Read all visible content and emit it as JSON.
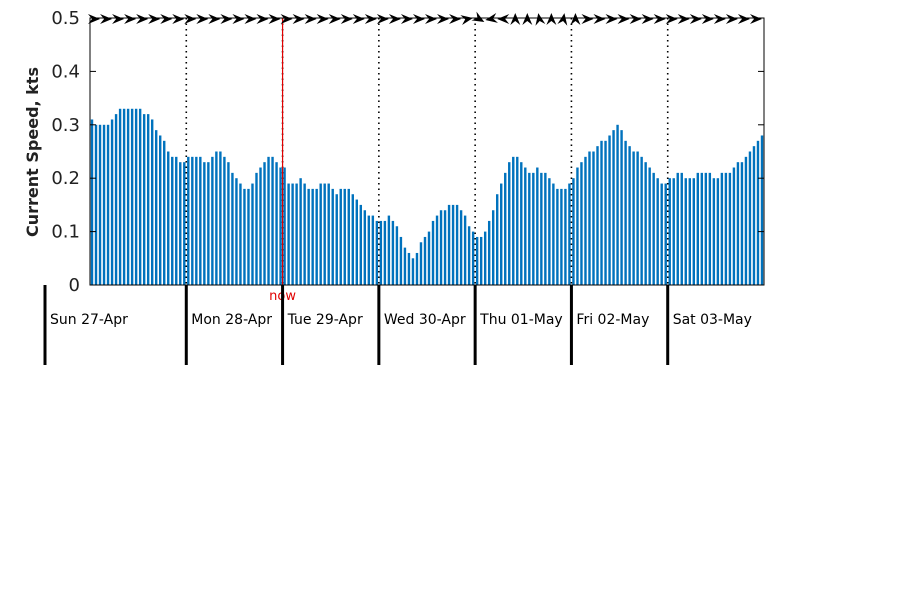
{
  "chart_data": {
    "type": "bar",
    "ylabel": "Current Speed, kts",
    "ylim": [
      0,
      0.5
    ],
    "yticks": [
      0,
      0.1,
      0.2,
      0.3,
      0.4,
      0.5
    ],
    "ytick_labels": [
      "0",
      "0.1",
      "0.2",
      "0.3",
      "0.4",
      "0.5"
    ],
    "x_start": "2025-04-27 00:00",
    "x_end": "2025-05-03 23:00",
    "x_step_hours": 1,
    "now": {
      "label": "now",
      "time": "2025-04-29 00:00"
    },
    "day_labels": [
      "Sun 27-Apr",
      "Mon 28-Apr",
      "Tue 29-Apr",
      "Wed 30-Apr",
      "Thu 01-May",
      "Fri 02-May",
      "Sat 03-May"
    ],
    "values": [
      0.31,
      0.3,
      0.3,
      0.3,
      0.3,
      0.31,
      0.32,
      0.33,
      0.33,
      0.33,
      0.33,
      0.33,
      0.33,
      0.32,
      0.32,
      0.31,
      0.29,
      0.28,
      0.27,
      0.25,
      0.24,
      0.24,
      0.23,
      0.23,
      0.24,
      0.24,
      0.24,
      0.24,
      0.23,
      0.23,
      0.24,
      0.25,
      0.25,
      0.24,
      0.23,
      0.21,
      0.2,
      0.19,
      0.18,
      0.18,
      0.19,
      0.21,
      0.22,
      0.23,
      0.24,
      0.24,
      0.23,
      0.22,
      0.22,
      0.19,
      0.19,
      0.19,
      0.2,
      0.19,
      0.18,
      0.18,
      0.18,
      0.19,
      0.19,
      0.19,
      0.18,
      0.17,
      0.18,
      0.18,
      0.18,
      0.17,
      0.16,
      0.15,
      0.14,
      0.13,
      0.13,
      0.12,
      0.12,
      0.12,
      0.13,
      0.12,
      0.11,
      0.09,
      0.07,
      0.06,
      0.05,
      0.06,
      0.08,
      0.09,
      0.1,
      0.12,
      0.13,
      0.14,
      0.14,
      0.15,
      0.15,
      0.15,
      0.14,
      0.13,
      0.11,
      0.1,
      0.09,
      0.09,
      0.1,
      0.12,
      0.14,
      0.17,
      0.19,
      0.21,
      0.23,
      0.24,
      0.24,
      0.23,
      0.22,
      0.21,
      0.21,
      0.22,
      0.21,
      0.21,
      0.2,
      0.19,
      0.18,
      0.18,
      0.18,
      0.19,
      0.2,
      0.22,
      0.23,
      0.24,
      0.25,
      0.25,
      0.26,
      0.27,
      0.27,
      0.28,
      0.29,
      0.3,
      0.29,
      0.27,
      0.26,
      0.25,
      0.25,
      0.24,
      0.23,
      0.22,
      0.21,
      0.2,
      0.19,
      0.19,
      0.2,
      0.2,
      0.21,
      0.21,
      0.2,
      0.2,
      0.2,
      0.21,
      0.21,
      0.21,
      0.21,
      0.2,
      0.2,
      0.21,
      0.21,
      0.21,
      0.22,
      0.23,
      0.23,
      0.24,
      0.25,
      0.26,
      0.27,
      0.28
    ],
    "direction_arrows": {
      "x_step_hours": 3,
      "headings_deg": [
        90,
        90,
        90,
        90,
        90,
        90,
        90,
        90,
        90,
        90,
        90,
        90,
        90,
        90,
        90,
        90,
        90,
        90,
        90,
        90,
        90,
        90,
        90,
        90,
        90,
        90,
        90,
        90,
        90,
        90,
        90,
        80,
        120,
        260,
        270,
        0,
        0,
        350,
        0,
        10,
        0,
        90,
        90,
        90,
        90,
        90,
        90,
        90,
        90,
        90,
        90,
        90,
        90,
        90,
        90,
        90
      ]
    },
    "colors": {
      "bar": "#0072bd",
      "now_line": "#e00000",
      "axis": "#000000",
      "day_divider": "#000000"
    }
  }
}
